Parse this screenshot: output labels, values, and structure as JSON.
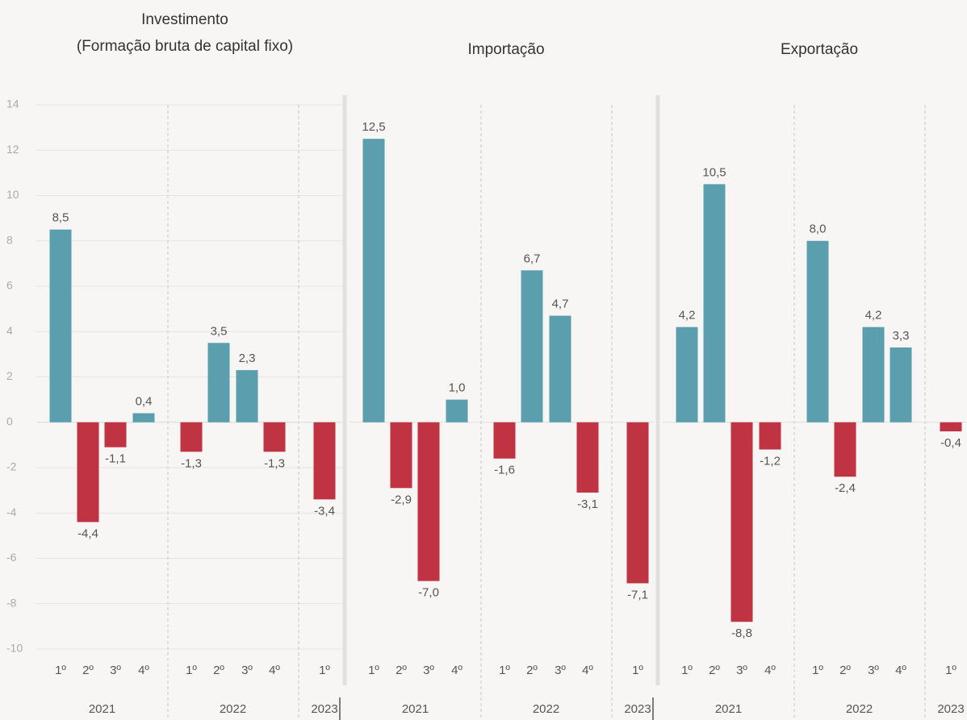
{
  "chart_data": [
    {
      "type": "bar",
      "title": "Investimento",
      "subtitle": "(Formação bruta de capital fixo)",
      "colors": {
        "positive": "#5b9fae",
        "negative": "#c03342"
      },
      "ylim": [
        -10,
        14
      ],
      "yticks": [
        -10,
        -8,
        -6,
        -4,
        -2,
        0,
        2,
        4,
        6,
        8,
        10,
        12,
        14
      ],
      "grid": true,
      "groups": [
        {
          "name": "2021",
          "categories": [
            "1º",
            "2º",
            "3º",
            "4º"
          ],
          "values": [
            8.5,
            -4.4,
            -1.1,
            0.4
          ],
          "value_labels": [
            "8,5",
            "-4,4",
            "-1,1",
            "0,4"
          ]
        },
        {
          "name": "2022",
          "categories": [
            "1º",
            "2º",
            "3º",
            "4º"
          ],
          "values": [
            -1.3,
            3.5,
            2.3,
            -1.3
          ],
          "value_labels": [
            "-1,3",
            "3,5",
            "2,3",
            "-1,3"
          ]
        },
        {
          "name": "2023",
          "categories": [
            "1º"
          ],
          "values": [
            -3.4
          ],
          "value_labels": [
            "-3,4"
          ]
        }
      ]
    },
    {
      "type": "bar",
      "title": "Importação",
      "colors": {
        "positive": "#5b9fae",
        "negative": "#c03342"
      },
      "ylim": [
        -10,
        14
      ],
      "groups": [
        {
          "name": "2021",
          "categories": [
            "1º",
            "2º",
            "3º",
            "4º"
          ],
          "values": [
            12.5,
            -2.9,
            -7.0,
            1.0
          ],
          "value_labels": [
            "12,5",
            "-2,9",
            "-7,0",
            "1,0"
          ]
        },
        {
          "name": "2022",
          "categories": [
            "1º",
            "2º",
            "3º",
            "4º"
          ],
          "values": [
            -1.6,
            6.7,
            4.7,
            -3.1
          ],
          "value_labels": [
            "-1,6",
            "6,7",
            "4,7",
            "-3,1"
          ]
        },
        {
          "name": "2023",
          "categories": [
            "1º"
          ],
          "values": [
            -7.1
          ],
          "value_labels": [
            "-7,1"
          ]
        }
      ]
    },
    {
      "type": "bar",
      "title": "Exportação",
      "colors": {
        "positive": "#5b9fae",
        "negative": "#c03342"
      },
      "ylim": [
        -10,
        14
      ],
      "groups": [
        {
          "name": "2021",
          "categories": [
            "1º",
            "2º",
            "3º",
            "4º"
          ],
          "values": [
            4.2,
            10.5,
            -8.8,
            -1.2
          ],
          "value_labels": [
            "4,2",
            "10,5",
            "-8,8",
            "-1,2"
          ]
        },
        {
          "name": "2022",
          "categories": [
            "1º",
            "2º",
            "3º",
            "4º"
          ],
          "values": [
            8.0,
            -2.4,
            4.2,
            3.3
          ],
          "value_labels": [
            "8,0",
            "-2,4",
            "4,2",
            "3,3"
          ]
        },
        {
          "name": "2023",
          "categories": [
            "1º"
          ],
          "values": [
            -0.4
          ],
          "value_labels": [
            "-0,4"
          ]
        }
      ]
    }
  ]
}
